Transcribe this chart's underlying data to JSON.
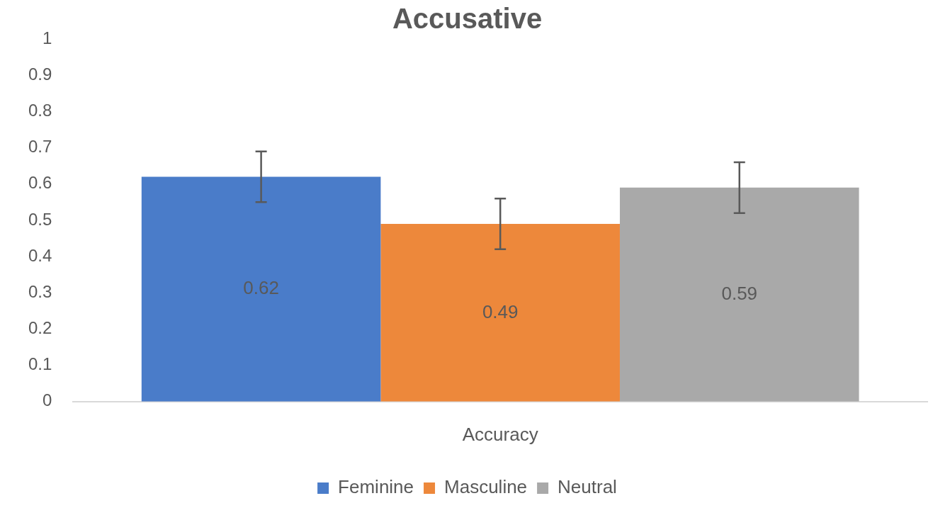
{
  "chart_data": {
    "type": "bar",
    "title": "Accusative",
    "categories": [
      "Accuracy"
    ],
    "series": [
      {
        "name": "Feminine",
        "color": "#4a7cc9",
        "values": [
          0.62
        ],
        "errors": [
          0.07
        ]
      },
      {
        "name": "Masculine",
        "color": "#ed883b",
        "values": [
          0.49
        ],
        "errors": [
          0.07
        ]
      },
      {
        "name": "Neutral",
        "color": "#a9a9a9",
        "values": [
          0.59
        ],
        "errors": [
          0.07
        ]
      }
    ],
    "ylim": [
      0,
      1
    ],
    "yticks": [
      0,
      0.1,
      0.2,
      0.3,
      0.4,
      0.5,
      0.6,
      0.7,
      0.8,
      0.9,
      1
    ],
    "grid": false,
    "legend": "bottom",
    "data_labels": true
  }
}
